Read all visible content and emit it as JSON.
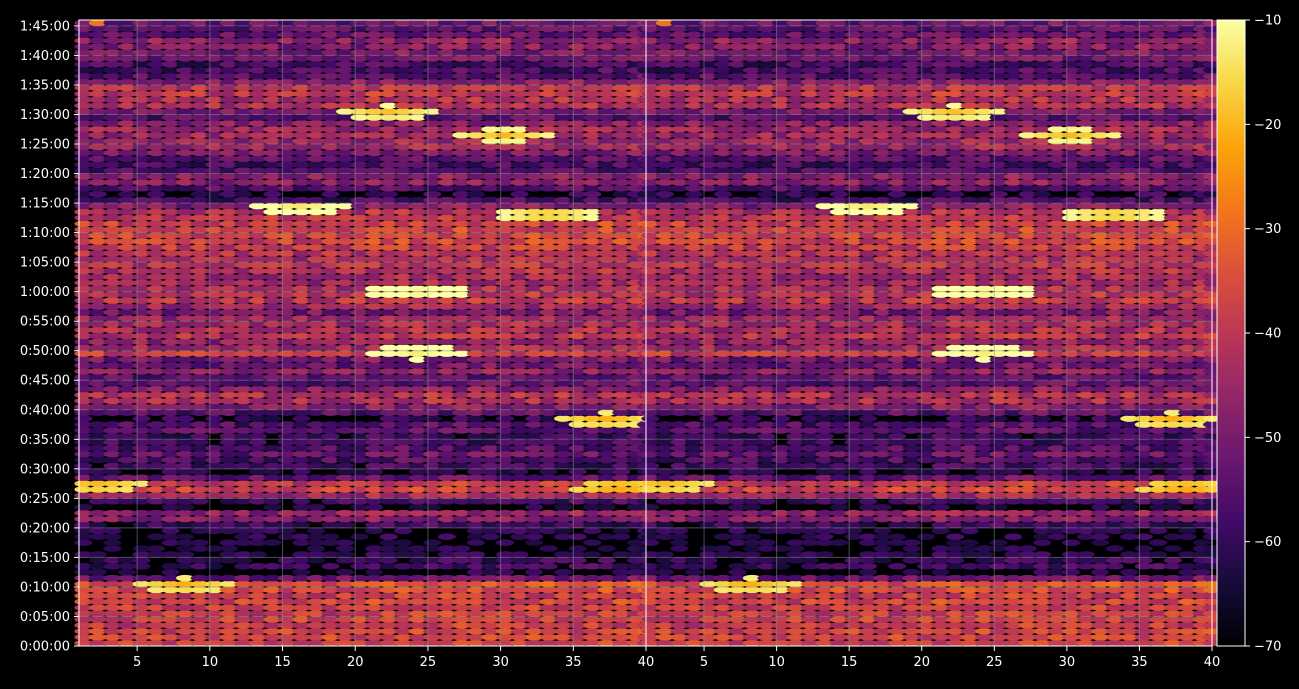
{
  "chart_data": {
    "type": "heatmap",
    "title": "",
    "xlabel": "",
    "ylabel": "",
    "panels": [
      {
        "name": "",
        "xlim": [
          1,
          40
        ],
        "x_ticks": [
          5,
          10,
          15,
          20,
          25,
          30,
          35,
          40
        ]
      },
      {
        "name": "",
        "xlim": [
          1,
          40
        ],
        "x_ticks": [
          5,
          10,
          15,
          20,
          25,
          30,
          35,
          40
        ]
      }
    ],
    "y_range_seconds": [
      0,
      6360
    ],
    "y_tick_labels": [
      "0:00:00",
      "0:05:00",
      "0:10:00",
      "0:15:00",
      "0:20:00",
      "0:25:00",
      "0:30:00",
      "0:35:00",
      "0:40:00",
      "0:45:00",
      "0:50:00",
      "0:55:00",
      "1:00:00",
      "1:05:00",
      "1:10:00",
      "1:15:00",
      "1:20:00",
      "1:25:00",
      "1:30:00",
      "1:35:00",
      "1:40:00",
      "1:45:00"
    ],
    "colorbar": {
      "min": -70,
      "max": -10,
      "ticks": [
        -10,
        -20,
        -30,
        -40,
        -50,
        -60,
        -70
      ],
      "colormap": "inferno"
    },
    "grid": true,
    "background": "#000000",
    "grid_color": "#8c8c8c",
    "time_profile_db": [
      [
        0,
        -40
      ],
      [
        60,
        -38
      ],
      [
        120,
        -36
      ],
      [
        180,
        -40
      ],
      [
        240,
        -39
      ],
      [
        300,
        -37
      ],
      [
        360,
        -42
      ],
      [
        420,
        -36
      ],
      [
        480,
        -40
      ],
      [
        540,
        -39
      ],
      [
        600,
        -33
      ],
      [
        660,
        -38
      ],
      [
        720,
        -68
      ],
      [
        800,
        -60
      ],
      [
        900,
        -62
      ],
      [
        1000,
        -66
      ],
      [
        1100,
        -63
      ],
      [
        1200,
        -62
      ],
      [
        1260,
        -58
      ],
      [
        1330,
        -38
      ],
      [
        1390,
        -66
      ],
      [
        1440,
        -66
      ],
      [
        1500,
        -52
      ],
      [
        1560,
        -38
      ],
      [
        1620,
        -37
      ],
      [
        1680,
        -43
      ],
      [
        1740,
        -66
      ],
      [
        1800,
        -60
      ],
      [
        1860,
        -58
      ],
      [
        1920,
        -55
      ],
      [
        1980,
        -53
      ],
      [
        2040,
        -60
      ],
      [
        2100,
        -58
      ],
      [
        2160,
        -63
      ],
      [
        2220,
        -47
      ],
      [
        2280,
        -66
      ],
      [
        2340,
        -58
      ],
      [
        2400,
        -53
      ],
      [
        2460,
        -46
      ],
      [
        2520,
        -40
      ],
      [
        2580,
        -45
      ],
      [
        2640,
        -53
      ],
      [
        2700,
        -57
      ],
      [
        2760,
        -53
      ],
      [
        2820,
        -43
      ],
      [
        2880,
        -63
      ],
      [
        2940,
        -40
      ],
      [
        3000,
        -37
      ],
      [
        3060,
        -52
      ],
      [
        3120,
        -43
      ],
      [
        3180,
        -40
      ],
      [
        3240,
        -47
      ],
      [
        3300,
        -42
      ],
      [
        3360,
        -50
      ],
      [
        3420,
        -53
      ],
      [
        3480,
        -38
      ],
      [
        3540,
        -44
      ],
      [
        3600,
        -40
      ],
      [
        3660,
        -47
      ],
      [
        3720,
        -44
      ],
      [
        3780,
        -46
      ],
      [
        3840,
        -40
      ],
      [
        3900,
        -43
      ],
      [
        3960,
        -44
      ],
      [
        4020,
        -39
      ],
      [
        4080,
        -40
      ],
      [
        4140,
        -36
      ],
      [
        4200,
        -40
      ],
      [
        4260,
        -36
      ],
      [
        4320,
        -40
      ],
      [
        4380,
        -42
      ],
      [
        4440,
        -43
      ],
      [
        4500,
        -56
      ],
      [
        4560,
        -60
      ],
      [
        4620,
        -64
      ],
      [
        4680,
        -50
      ],
      [
        4740,
        -47
      ],
      [
        4800,
        -50
      ],
      [
        4860,
        -64
      ],
      [
        4920,
        -53
      ],
      [
        4980,
        -58
      ],
      [
        5040,
        -43
      ],
      [
        5100,
        -48
      ],
      [
        5160,
        -45
      ],
      [
        5220,
        -46
      ],
      [
        5280,
        -45
      ],
      [
        5340,
        -52
      ],
      [
        5400,
        -60
      ],
      [
        5460,
        -42
      ],
      [
        5520,
        -44
      ],
      [
        5580,
        -42
      ],
      [
        5640,
        -39
      ],
      [
        5700,
        -42
      ],
      [
        5760,
        -55
      ],
      [
        5820,
        -56
      ],
      [
        5880,
        -60
      ],
      [
        5940,
        -56
      ],
      [
        6000,
        -48
      ],
      [
        6060,
        -54
      ],
      [
        6120,
        -45
      ],
      [
        6180,
        -50
      ],
      [
        6240,
        -58
      ],
      [
        6300,
        -52
      ],
      [
        6360,
        -54
      ]
    ],
    "hotspots_db": [
      {
        "x": 2,
        "t": 1630,
        "value": -22
      },
      {
        "x": 8,
        "t": 620,
        "value": -22
      },
      {
        "x": 16,
        "t": 4450,
        "value": -16
      },
      {
        "x": 24,
        "t": 3600,
        "value": -15
      },
      {
        "x": 24,
        "t": 2980,
        "value": -14
      },
      {
        "x": 22,
        "t": 5420,
        "value": -20
      },
      {
        "x": 30,
        "t": 5190,
        "value": -20
      },
      {
        "x": 33,
        "t": 4380,
        "value": -20
      },
      {
        "x": 37,
        "t": 2300,
        "value": -22
      },
      {
        "x": 38,
        "t": 1610,
        "value": -24
      },
      {
        "x": 2,
        "t": 6400,
        "value": -38
      }
    ]
  }
}
